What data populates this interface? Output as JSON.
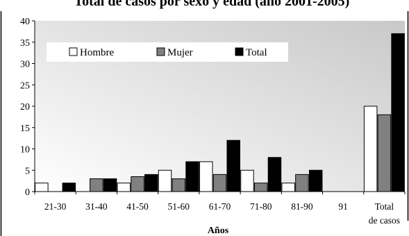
{
  "chart_data": {
    "type": "bar",
    "title": "Total de casos por sexo y edad (año 2001-2005)",
    "xlabel": "Años",
    "ylabel": "",
    "ylim": [
      0,
      40
    ],
    "yticks": [
      0,
      5,
      10,
      15,
      20,
      25,
      30,
      35,
      40
    ],
    "grid": false,
    "legend_position": "top-left",
    "categories": [
      "21-30",
      "31-40",
      "41-50",
      "51-60",
      "61-70",
      "71-80",
      "81-90",
      "91",
      "Total de casos"
    ],
    "series": [
      {
        "name": "Hombre",
        "color": "#ffffff",
        "values": [
          2,
          0,
          2,
          5,
          7,
          5,
          2,
          0,
          20
        ]
      },
      {
        "name": "Mujer",
        "color": "#808080",
        "values": [
          0,
          3,
          3.5,
          3,
          4,
          2,
          4,
          0,
          18
        ]
      },
      {
        "name": "Total",
        "color": "#000000",
        "values": [
          2,
          3,
          4,
          7,
          12,
          8,
          5,
          0,
          37
        ]
      }
    ]
  }
}
